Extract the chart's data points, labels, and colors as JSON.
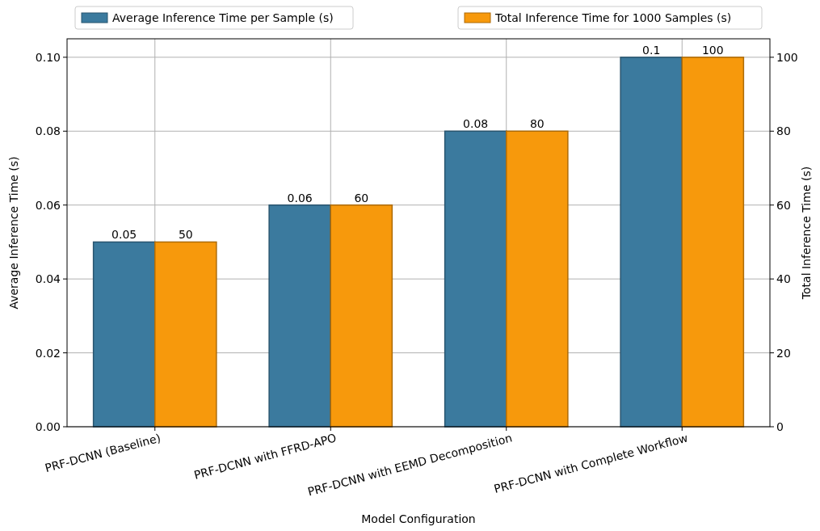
{
  "chart_data": {
    "type": "bar",
    "xlabel": "Model Configuration",
    "ylabel": "Average Inference Time (s)",
    "y2label": "Total Inference Time (s)",
    "categories": [
      "PRF-DCNN (Baseline)",
      "PRF-DCNN with FFRD-APO",
      "PRF-DCNN with EEMD Decomposition",
      "PRF-DCNN with Complete Workflow"
    ],
    "series": [
      {
        "name": "Average Inference Time per Sample (s)",
        "color": "#3b7a9e",
        "values": [
          0.05,
          0.06,
          0.08,
          0.1
        ]
      },
      {
        "name": "Total Inference Time for 1000 Samples (s)",
        "color": "#f7990c",
        "values": [
          50,
          60,
          80,
          100
        ],
        "axis": "y2"
      }
    ],
    "ylim": [
      0,
      0.105
    ],
    "yticks": [
      {
        "value": 0,
        "label": "0.00"
      },
      {
        "value": 0.02,
        "label": "0.02"
      },
      {
        "value": 0.04,
        "label": "0.04"
      },
      {
        "value": 0.06,
        "label": "0.06"
      },
      {
        "value": 0.08,
        "label": "0.08"
      },
      {
        "value": 0.1,
        "label": "0.10"
      }
    ],
    "y2lim": [
      0,
      105
    ],
    "y2ticks": [
      0,
      20,
      40,
      60,
      80,
      100
    ],
    "grid": true,
    "legend": "top",
    "data_labels": true
  }
}
